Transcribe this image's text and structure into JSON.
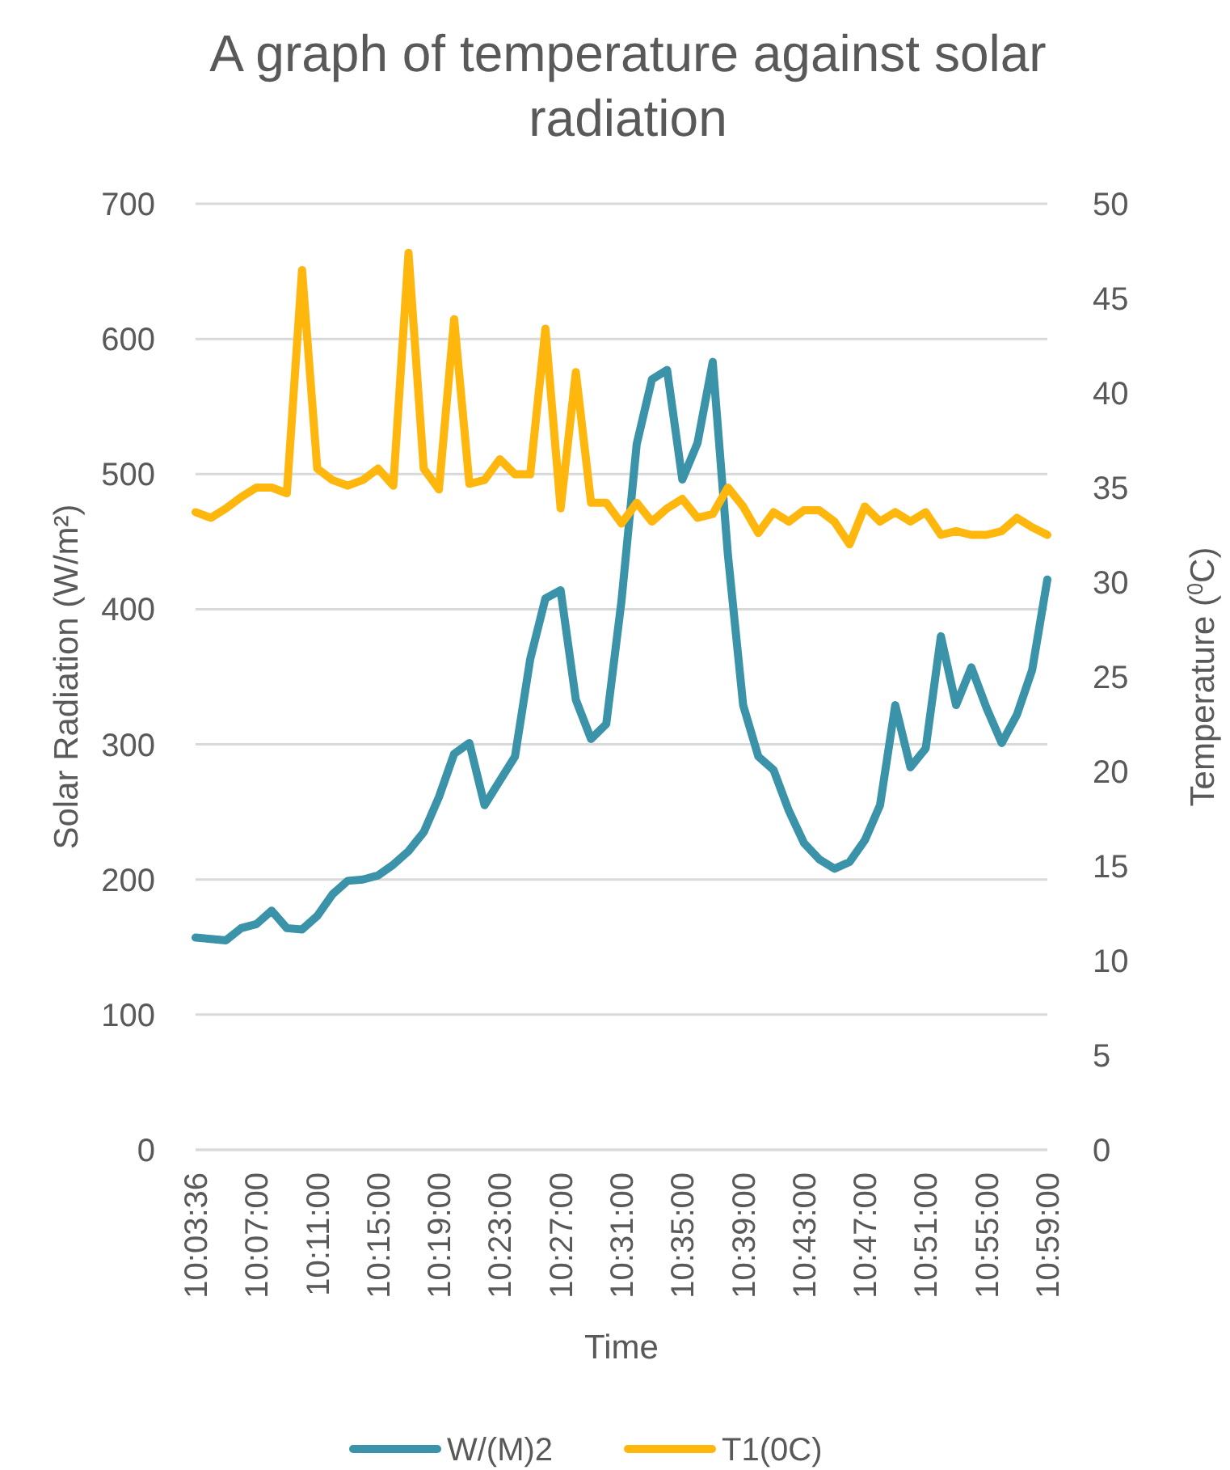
{
  "chart_data": {
    "type": "line",
    "title": "A graph of temperature against solar radiation",
    "xlabel": "Time",
    "ylabel": "Solar Radiation (W/m²)",
    "y2label": "Temperature ($^{0}$C)",
    "categories": [
      "10:03:36",
      null,
      null,
      null,
      "10:07:00",
      null,
      null,
      null,
      "10:11:00",
      null,
      null,
      null,
      "10:15:00",
      null,
      null,
      null,
      "10:19:00",
      null,
      null,
      null,
      "10:23:00",
      null,
      null,
      null,
      "10:27:00",
      null,
      null,
      null,
      "10:31:00",
      null,
      null,
      null,
      "10:35:00",
      null,
      null,
      null,
      "10:39:00",
      null,
      null,
      null,
      "10:43:00",
      null,
      null,
      null,
      "10:47:00",
      null,
      null,
      null,
      "10:51:00",
      null,
      null,
      null,
      "10:55:00",
      null,
      null,
      null,
      "10:59:00"
    ],
    "series": [
      {
        "name": "W/(M)2",
        "color": "#3a93a8",
        "values": [
          157,
          156,
          155,
          164,
          167,
          177,
          164,
          163,
          173,
          189,
          199,
          200,
          203,
          211,
          221,
          235,
          261,
          293,
          301,
          255,
          273,
          291,
          363,
          408,
          414,
          333,
          304,
          315,
          406,
          522,
          570,
          577,
          496,
          523,
          583,
          440,
          329,
          291,
          281,
          251,
          227,
          215,
          208,
          213,
          229,
          255,
          329,
          283,
          297,
          380,
          329,
          357,
          327,
          301,
          322,
          355,
          422
        ]
      },
      {
        "name": "T1(0C)",
        "color": "#ffb60d",
        "axis": "y2",
        "values": [
          33.7,
          33.4,
          33.9,
          34.5,
          35.0,
          35.0,
          34.7,
          46.5,
          36.0,
          35.4,
          35.1,
          35.4,
          36.0,
          35.1,
          47.4,
          36.0,
          34.9,
          43.9,
          35.2,
          35.4,
          36.5,
          35.7,
          35.7,
          43.4,
          33.9,
          41.1,
          34.2,
          34.2,
          33.1,
          34.2,
          33.2,
          33.9,
          34.4,
          33.4,
          33.6,
          35.0,
          34.0,
          32.6,
          33.7,
          33.2,
          33.8,
          33.8,
          33.2,
          32.0,
          34.0,
          33.2,
          33.7,
          33.2,
          33.7,
          32.5,
          32.7,
          32.5,
          32.5,
          32.7,
          33.4,
          32.9,
          32.5
        ]
      }
    ],
    "ylim": [
      0,
      700
    ],
    "yticks": [
      0,
      100,
      200,
      300,
      400,
      500,
      600,
      700
    ],
    "y2lim": [
      0,
      50
    ],
    "y2ticks": [
      0,
      5,
      10,
      15,
      20,
      25,
      30,
      35,
      40,
      45,
      50
    ],
    "grid": "y",
    "legend": "bottom",
    "marker": "none",
    "line_style": "solid"
  }
}
